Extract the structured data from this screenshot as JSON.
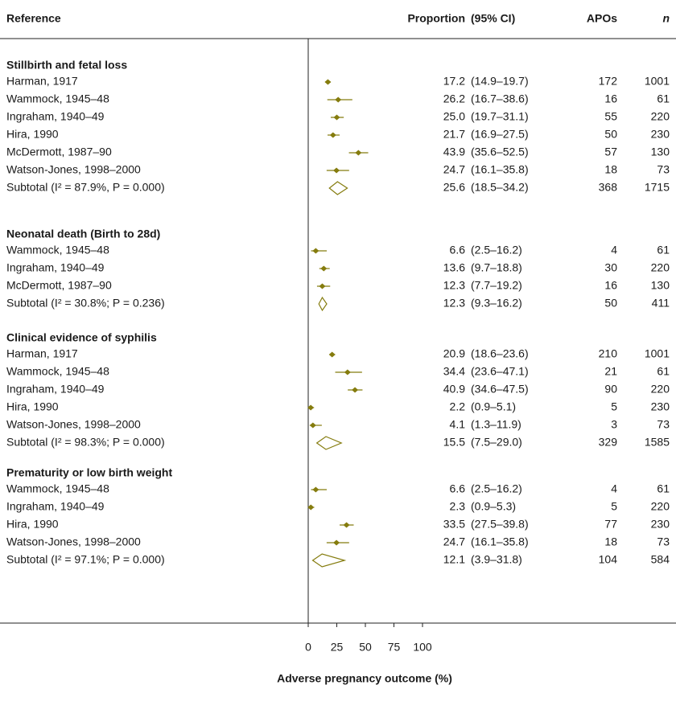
{
  "chart_data": {
    "type": "forest",
    "columns": [
      "Reference",
      "Proportion",
      "(95% CI)",
      "APOs",
      "n"
    ],
    "xlabel": "Adverse pregnancy outcome (%)",
    "xlim": [
      0,
      100
    ],
    "xticks": [
      0,
      25,
      50,
      75,
      100
    ],
    "color": "#857c0e",
    "groups": [
      {
        "title": "Stillbirth and fetal loss",
        "rows": [
          {
            "label": "Harman, 1917",
            "value": 17.2,
            "lower": 14.9,
            "upper": 19.7,
            "ci_label": "(14.9–19.7)",
            "apos": 172,
            "n": 1001
          },
          {
            "label": "Wammock, 1945–48",
            "value": 26.2,
            "lower": 16.7,
            "upper": 38.6,
            "ci_label": "(16.7–38.6)",
            "apos": 16,
            "n": 61
          },
          {
            "label": "Ingraham, 1940–49",
            "value": 25.0,
            "value_label": "25.0",
            "lower": 19.7,
            "upper": 31.1,
            "ci_label": "(19.7–31.1)",
            "apos": 55,
            "n": 220
          },
          {
            "label": "Hira, 1990",
            "value": 21.7,
            "lower": 16.9,
            "upper": 27.5,
            "ci_label": "(16.9–27.5)",
            "apos": 50,
            "n": 230
          },
          {
            "label": "McDermott, 1987–90",
            "value": 43.9,
            "lower": 35.6,
            "upper": 52.5,
            "ci_label": "(35.6–52.5)",
            "apos": 57,
            "n": 130
          },
          {
            "label": "Watson-Jones, 1998–2000",
            "value": 24.7,
            "lower": 16.1,
            "upper": 35.8,
            "ci_label": "(16.1–35.8)",
            "apos": 18,
            "n": 73
          }
        ],
        "subtotal": {
          "label": "Subtotal (I² = 87.9%, P = 0.000)",
          "value": 25.6,
          "lower": 18.5,
          "upper": 34.2,
          "ci_label": "(18.5–34.2)",
          "apos": 368,
          "n": 1715
        }
      },
      {
        "title": "Neonatal death (Birth to 28d)",
        "rows": [
          {
            "label": "Wammock, 1945–48",
            "value": 6.6,
            "lower": 2.5,
            "upper": 16.2,
            "ci_label": "(2.5–16.2)",
            "apos": 4,
            "n": 61
          },
          {
            "label": "Ingraham, 1940–49",
            "value": 13.6,
            "lower": 9.7,
            "upper": 18.8,
            "ci_label": "(9.7–18.8)",
            "apos": 30,
            "n": 220
          },
          {
            "label": "McDermott, 1987–90",
            "value": 12.3,
            "lower": 7.7,
            "upper": 19.2,
            "ci_label": "(7.7–19.2)",
            "apos": 16,
            "n": 130
          }
        ],
        "subtotal": {
          "label": "Subtotal (I² = 30.8%; P = 0.236)",
          "value": 12.3,
          "lower": 9.3,
          "upper": 16.2,
          "ci_label": "(9.3–16.2)",
          "apos": 50,
          "n": 411
        }
      },
      {
        "title": "Clinical evidence of syphilis",
        "rows": [
          {
            "label": "Harman, 1917",
            "value": 20.9,
            "lower": 18.6,
            "upper": 23.6,
            "ci_label": "(18.6–23.6)",
            "apos": 210,
            "n": 1001
          },
          {
            "label": "Wammock, 1945–48",
            "value": 34.4,
            "lower": 23.6,
            "upper": 47.1,
            "ci_label": "(23.6–47.1)",
            "apos": 21,
            "n": 61
          },
          {
            "label": "Ingraham, 1940–49",
            "value": 40.9,
            "lower": 34.6,
            "upper": 47.5,
            "ci_label": "(34.6–47.5)",
            "apos": 90,
            "n": 220
          },
          {
            "label": "Hira, 1990",
            "value": 2.2,
            "lower": 0.9,
            "upper": 5.1,
            "ci_label": "(0.9–5.1)",
            "apos": 5,
            "n": 230
          },
          {
            "label": "Watson-Jones, 1998–2000",
            "value": 4.1,
            "lower": 1.3,
            "upper": 11.9,
            "ci_label": "(1.3–11.9)",
            "apos": 3,
            "n": 73
          }
        ],
        "subtotal": {
          "label": "Subtotal (I² = 98.3%; P = 0.000)",
          "value": 15.5,
          "lower": 7.5,
          "upper": 29.0,
          "ci_label": "(7.5–29.0)",
          "apos": 329,
          "n": 1585
        }
      },
      {
        "title": "Prematurity or low birth weight",
        "rows": [
          {
            "label": "Wammock, 1945–48",
            "value": 6.6,
            "lower": 2.5,
            "upper": 16.2,
            "ci_label": "(2.5–16.2)",
            "apos": 4,
            "n": 61
          },
          {
            "label": "Ingraham, 1940–49",
            "value": 2.3,
            "lower": 0.9,
            "upper": 5.3,
            "ci_label": "(0.9–5.3)",
            "apos": 5,
            "n": 220
          },
          {
            "label": "Hira, 1990",
            "value": 33.5,
            "lower": 27.5,
            "upper": 39.8,
            "ci_label": "(27.5–39.8)",
            "apos": 77,
            "n": 230
          },
          {
            "label": "Watson-Jones, 1998–2000",
            "value": 24.7,
            "lower": 16.1,
            "upper": 35.8,
            "ci_label": "(16.1–35.8)",
            "apos": 18,
            "n": 73
          }
        ],
        "subtotal": {
          "label": "Subtotal (I² = 97.1%; P = 0.000)",
          "value": 12.1,
          "lower": 3.9,
          "upper": 31.8,
          "ci_label": "(3.9–31.8)",
          "apos": 104,
          "n": 584
        }
      }
    ]
  }
}
